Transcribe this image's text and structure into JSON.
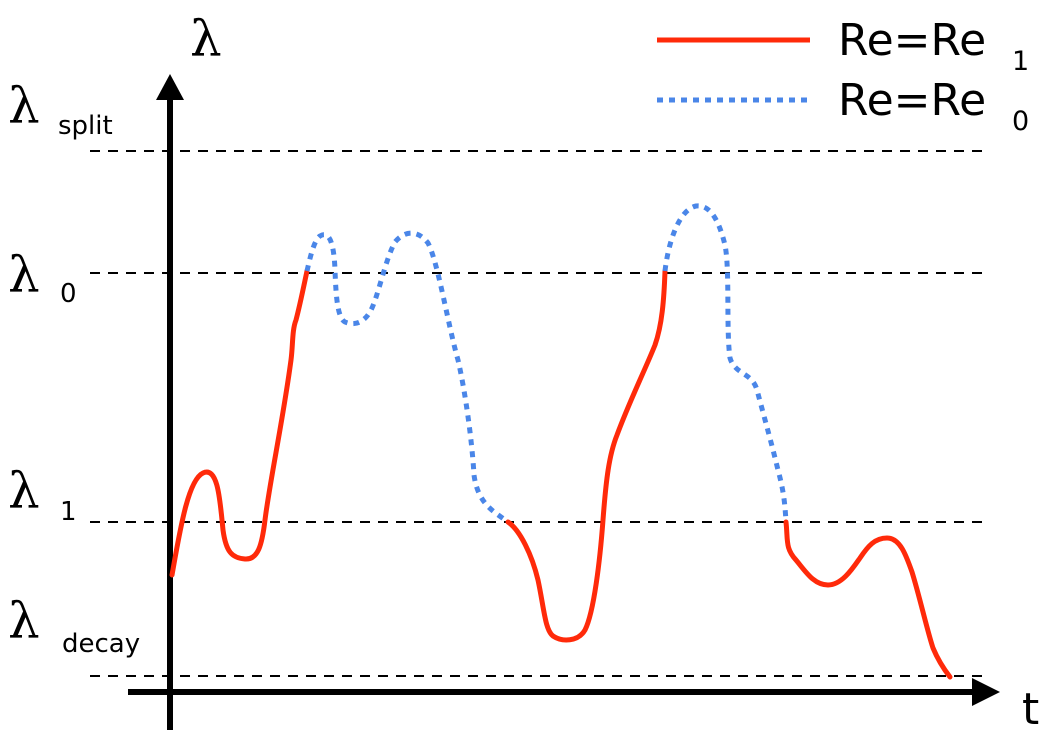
{
  "axes": {
    "y_symbol": "λ",
    "x_symbol": "t"
  },
  "levels": [
    {
      "id": "split",
      "symbol": "λ",
      "subscript": "split"
    },
    {
      "id": "zero",
      "symbol": "λ",
      "subscript": "0"
    },
    {
      "id": "one",
      "symbol": "λ",
      "subscript": "1"
    },
    {
      "id": "decay",
      "symbol": "λ",
      "subscript": "decay"
    }
  ],
  "legend": {
    "solid": {
      "text": "Re=Re",
      "subscript": "1",
      "color": "#ff2a0a"
    },
    "dotted": {
      "text": "Re=Re",
      "subscript": "0",
      "color": "#4a86e8"
    }
  },
  "colors": {
    "axis": "#000000",
    "reference_line": "#000000",
    "solid_curve": "#ff2a0a",
    "dotted_curve": "#4a86e8"
  }
}
